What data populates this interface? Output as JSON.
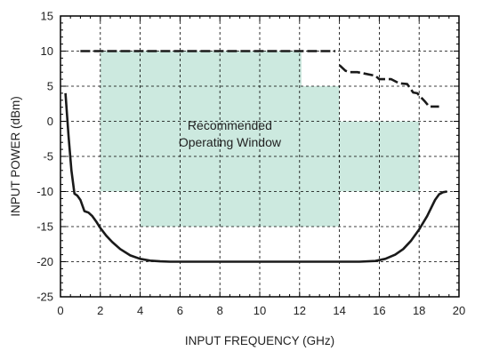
{
  "chart_data": {
    "type": "line",
    "title": "",
    "xlabel": "INPUT FREQUENCY (GHz)",
    "ylabel": "INPUT POWER (dBm)",
    "xlim": [
      0,
      20
    ],
    "ylim": [
      -25,
      15
    ],
    "xticks": [
      0,
      2,
      4,
      6,
      8,
      10,
      12,
      14,
      16,
      18,
      20
    ],
    "yticks": [
      -25,
      -20,
      -15,
      -10,
      -5,
      0,
      5,
      10,
      15
    ],
    "grid": true,
    "annotation": {
      "lines": [
        "Recommended",
        "Operating Window"
      ],
      "x": 8.5,
      "y": -1.3
    },
    "window_color": "#cce9df",
    "line_color": "#1a1a1a",
    "recommended_window": [
      [
        2,
        -10
      ],
      [
        2,
        10
      ],
      [
        12.1,
        10
      ],
      [
        12.1,
        5
      ],
      [
        14,
        5
      ],
      [
        14,
        0
      ],
      [
        18,
        0
      ],
      [
        18,
        -10
      ],
      [
        14,
        -10
      ],
      [
        14,
        -15
      ],
      [
        4,
        -15
      ],
      [
        4,
        -10
      ]
    ],
    "series": [
      {
        "style": "solid",
        "x": [
          0.25,
          0.4,
          0.55,
          0.7,
          0.85,
          1.0,
          1.2,
          1.4,
          1.6,
          1.8,
          2.0,
          2.3,
          2.6,
          3.0,
          3.5,
          4.0,
          4.5,
          5.0,
          5.5,
          6.0,
          8.0,
          10.0,
          12.0,
          14.0,
          15.0,
          15.8,
          16.3,
          16.8,
          17.2,
          17.6,
          18.0,
          18.4,
          18.8,
          19.0,
          19.2,
          19.4
        ],
        "y": [
          4,
          -2,
          -7,
          -10.3,
          -10.6,
          -11.2,
          -12.8,
          -13,
          -13.5,
          -14.3,
          -15.2,
          -16.3,
          -17.2,
          -18.2,
          -19.1,
          -19.6,
          -19.85,
          -19.95,
          -20,
          -20,
          -20,
          -20,
          -20,
          -20,
          -20,
          -19.9,
          -19.6,
          -19,
          -18.2,
          -17,
          -15.4,
          -13.5,
          -11.2,
          -10.4,
          -10.1,
          -10
        ]
      },
      {
        "style": "dashed",
        "x": [
          1.0,
          1.5,
          2.0,
          4.0,
          6.0,
          8.0,
          10.0,
          12.0,
          12.6,
          13.3,
          13.8
        ],
        "y": [
          10,
          10,
          10,
          10,
          10,
          10,
          10,
          10,
          10,
          10,
          10
        ]
      },
      {
        "style": "dashed",
        "x": [
          14.0,
          14.3,
          14.5,
          14.9,
          15.8,
          16.0,
          16.6,
          17.0,
          17.4,
          17.7,
          17.9,
          18.3,
          18.5,
          19.0
        ],
        "y": [
          8,
          7.2,
          7,
          7,
          6.5,
          6,
          6,
          5.4,
          5.3,
          4.1,
          4.0,
          2.8,
          2.1,
          2.1
        ]
      }
    ]
  }
}
